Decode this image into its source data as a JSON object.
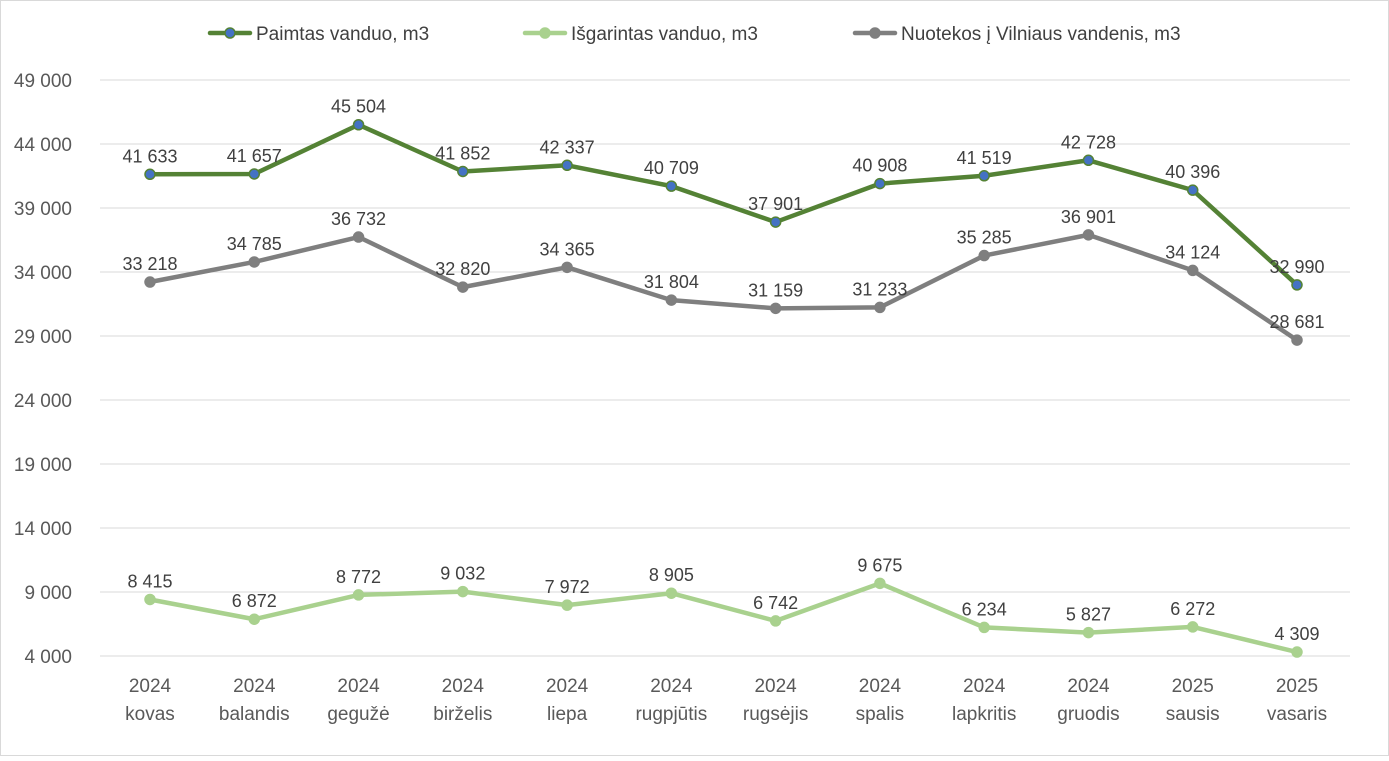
{
  "chart_data": {
    "type": "line",
    "title": "",
    "xlabel": "",
    "ylabel": "",
    "ylim": [
      4000,
      49000
    ],
    "yticks": [
      4000,
      9000,
      14000,
      19000,
      24000,
      29000,
      34000,
      39000,
      44000,
      49000
    ],
    "ytick_labels": [
      "4 000",
      "9 000",
      "14 000",
      "19 000",
      "24 000",
      "29 000",
      "34 000",
      "39 000",
      "44 000",
      "49 000"
    ],
    "grid": true,
    "legend_position": "top",
    "categories": [
      [
        "2024",
        "kovas"
      ],
      [
        "2024",
        "balandis"
      ],
      [
        "2024",
        "gegužė"
      ],
      [
        "2024",
        "birželis"
      ],
      [
        "2024",
        "liepa"
      ],
      [
        "2024",
        "rugpjūtis"
      ],
      [
        "2024",
        "rugsėjis"
      ],
      [
        "2024",
        "spalis"
      ],
      [
        "2024",
        "lapkritis"
      ],
      [
        "2024",
        "gruodis"
      ],
      [
        "2025",
        "sausis"
      ],
      [
        "2025",
        "vasaris"
      ]
    ],
    "series": [
      {
        "name": "Paimtas vanduo, m3",
        "color": "#548235",
        "marker_color": "#4472c4",
        "values": [
          41633,
          41657,
          45504,
          41852,
          42337,
          40709,
          37901,
          40908,
          41519,
          42728,
          40396,
          32990
        ],
        "labels": [
          "41 633",
          "41 657",
          "45 504",
          "41 852",
          "42 337",
          "40 709",
          "37 901",
          "40 908",
          "41 519",
          "42 728",
          "40 396",
          "32 990"
        ]
      },
      {
        "name": "Išgarintas vanduo, m3",
        "color": "#a9d18e",
        "marker_color": "#a9d18e",
        "values": [
          8415,
          6872,
          8772,
          9032,
          7972,
          8905,
          6742,
          9675,
          6234,
          5827,
          6272,
          4309
        ],
        "labels": [
          "8 415",
          "6 872",
          "8 772",
          "9 032",
          "7 972",
          "8 905",
          "6 742",
          "9 675",
          "6 234",
          "5 827",
          "6 272",
          "4 309"
        ]
      },
      {
        "name": "Nuotekos į Vilniaus vandenis, m3",
        "color": "#7f7f7f",
        "marker_color": "#7f7f7f",
        "values": [
          33218,
          34785,
          36732,
          32820,
          34365,
          31804,
          31159,
          31233,
          35285,
          36901,
          34124,
          28681
        ],
        "labels": [
          "33 218",
          "34 785",
          "36 732",
          "32 820",
          "34 365",
          "31 804",
          "31 159",
          "31 233",
          "35 285",
          "36 901",
          "34 124",
          "28 681"
        ]
      }
    ]
  }
}
